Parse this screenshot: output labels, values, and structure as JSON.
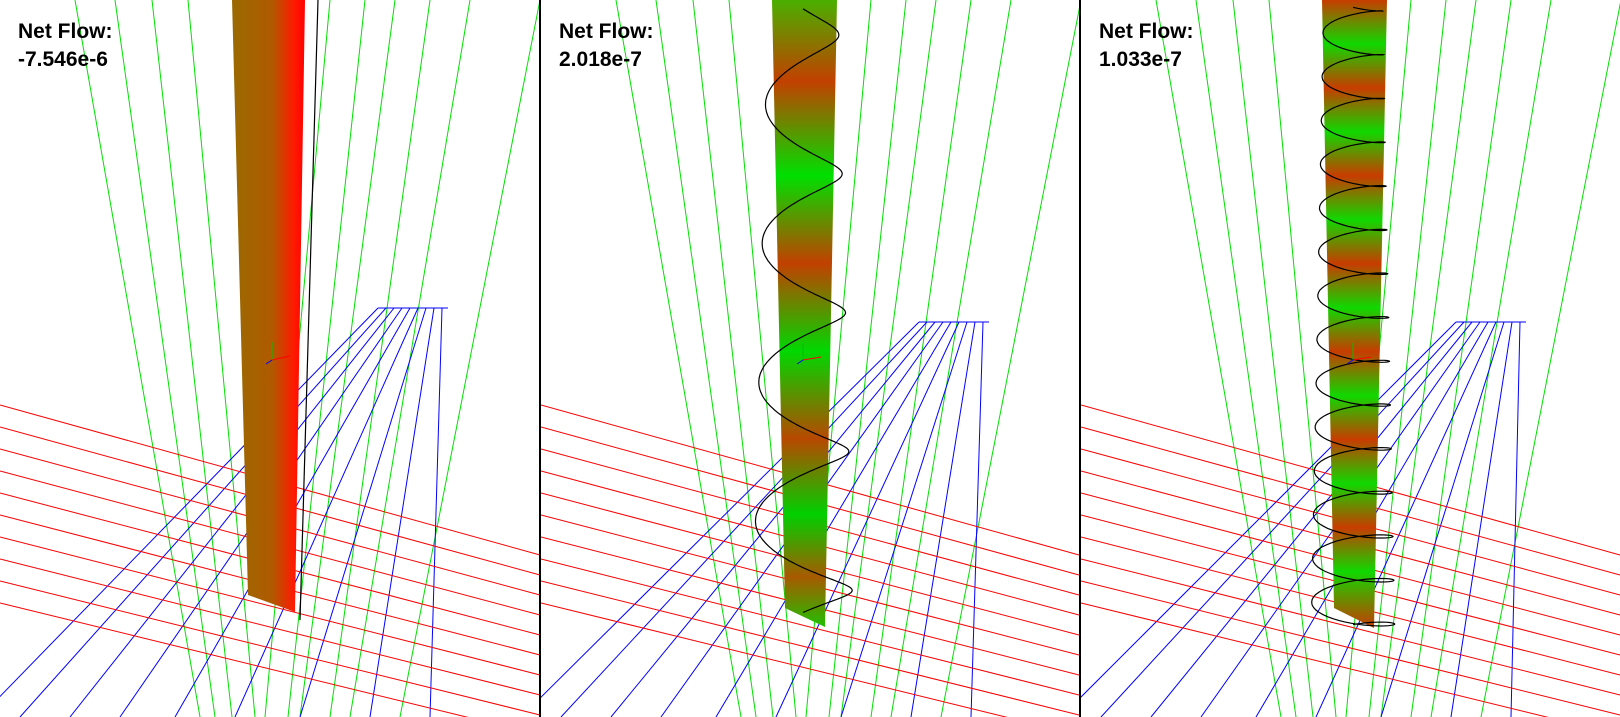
{
  "panels": [
    {
      "title": "Net Flow:",
      "value": "-7.546e-6"
    },
    {
      "title": "Net Flow:",
      "value": "2.018e-7"
    },
    {
      "title": "Net Flow:",
      "value": "1.033e-7"
    }
  ],
  "colors": {
    "red_grid": "#ff0000",
    "blue_grid": "#0000ff",
    "green_grid": "#00e000",
    "helix": "#000000",
    "tube_red": "#ff0000",
    "tube_green": "#00e000",
    "tube_olive": "#8a6a00"
  }
}
